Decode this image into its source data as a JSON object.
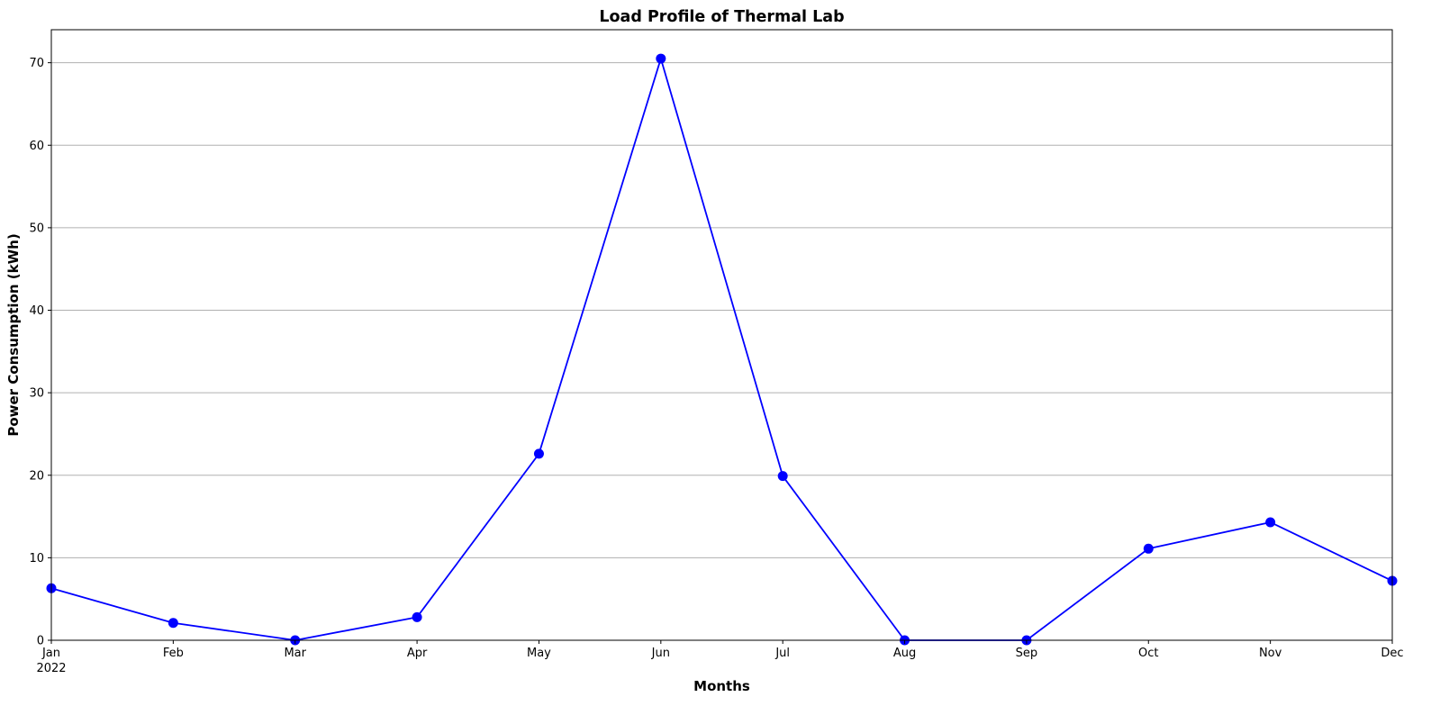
{
  "chart_data": {
    "type": "line",
    "title": "Load Profile of Thermal Lab",
    "xlabel": "Months",
    "ylabel": "Power Consumption (kWh)",
    "x": [
      "Jan",
      "Feb",
      "Mar",
      "Apr",
      "May",
      "Jun",
      "Jul",
      "Aug",
      "Sep",
      "Oct",
      "Nov",
      "Dec"
    ],
    "year_label": "2022",
    "series": [
      {
        "values": [
          6.3,
          2.1,
          0.0,
          2.8,
          22.6,
          70.5,
          19.9,
          0.0,
          0.0,
          11.1,
          14.3,
          7.2
        ],
        "color": "#0000ff",
        "marker": "circle"
      }
    ],
    "ylim": [
      0,
      74
    ],
    "yticks": [
      0,
      10,
      20,
      30,
      40,
      50,
      60,
      70
    ],
    "grid": "horizontal"
  }
}
